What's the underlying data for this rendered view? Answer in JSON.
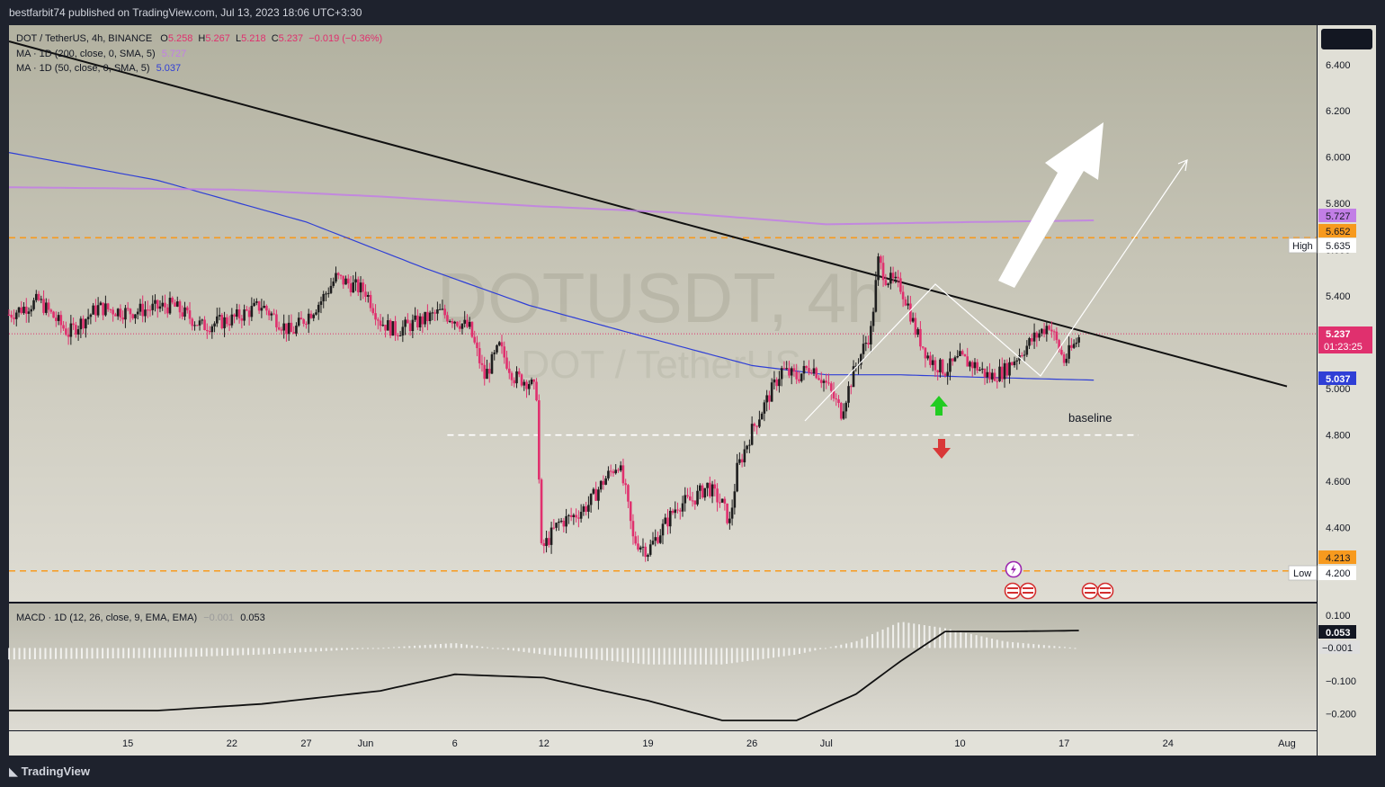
{
  "header": {
    "publisher": "bestfarbit74 published on TradingView.com, Jul 13, 2023 18:06 UTC+3:30"
  },
  "legend": {
    "symbol": "DOT / TetherUS, 4h, BINANCE",
    "o_label": "O",
    "o_value": "5.258",
    "h_label": "H",
    "h_value": "5.267",
    "l_label": "L",
    "l_value": "5.218",
    "c_label": "C",
    "c_value": "5.237",
    "change": "−0.019 (−0.36%)",
    "ma200_label": "MA · 1D (200, close, 0, SMA, 5)",
    "ma200_value": "5.727",
    "ma50_label": "MA · 1D (50, close, 0, SMA, 5)",
    "ma50_value": "5.037"
  },
  "watermark": {
    "ticker": "DOTUSDT, 4h",
    "pair": "DOT / TetherUS"
  },
  "annotations": {
    "baseline": "baseline"
  },
  "macd_legend": {
    "label": "MACD · 1D (12, 26, close, 9, EMA, EMA)",
    "hist_value": "−0.001",
    "macd_value": "0.053"
  },
  "price_labels": {
    "ma200": "5.727",
    "resistance": "5.652",
    "high_tag": "High",
    "high_value": "5.635",
    "last_price": "5.237",
    "countdown": "01:23:25",
    "ma50": "5.037",
    "support": "4.213",
    "low_tag": "Low",
    "low_value": "4.200"
  },
  "macd_labels": {
    "macd": "0.053",
    "hist": "−0.001"
  },
  "footer": {
    "brand": "TradingView"
  },
  "colors": {
    "candle_up": "#1e1e1e",
    "candle_down": "#e0306e",
    "ma50": "#2f3fd6",
    "ma200": "#c27ee6",
    "trendline": "#111111",
    "level": "#f79a1e",
    "baseline": "#ffffff",
    "arrow_up": "#22cc22",
    "arrow_down": "#d93838"
  },
  "chart_data": {
    "type": "candlestick",
    "title": "DOT / TetherUS, 4h, BINANCE",
    "ylim": [
      4.08,
      6.57
    ],
    "y_ticks": [
      "6.400",
      "6.200",
      "6.000",
      "5.800",
      "5.600",
      "5.400",
      "5.200",
      "5.000",
      "4.800",
      "4.600",
      "4.400"
    ],
    "y_tick_values": [
      6.4,
      6.2,
      6.0,
      5.8,
      5.6,
      5.4,
      5.2,
      5.0,
      4.8,
      4.6,
      4.4
    ],
    "x_ticks": [
      "15",
      "22",
      "27",
      "Jun",
      "6",
      "12",
      "19",
      "26",
      "Jul",
      "10",
      "17",
      "24",
      "Aug"
    ],
    "x_tick_days": [
      -47,
      -40,
      -35,
      -31,
      -25,
      -19,
      -12,
      -5,
      0,
      9,
      16,
      23,
      31
    ],
    "x_range_days": [
      -55,
      33
    ],
    "price_path": [
      [
        -55,
        5.32
      ],
      [
        -53,
        5.38
      ],
      [
        -51,
        5.24
      ],
      [
        -49,
        5.35
      ],
      [
        -47,
        5.33
      ],
      [
        -44,
        5.36
      ],
      [
        -42,
        5.27
      ],
      [
        -40,
        5.3
      ],
      [
        -38,
        5.36
      ],
      [
        -36,
        5.24
      ],
      [
        -34,
        5.38
      ],
      [
        -33,
        5.48
      ],
      [
        -31,
        5.42
      ],
      [
        -30,
        5.29
      ],
      [
        -29,
        5.25
      ],
      [
        -27,
        5.3
      ],
      [
        -26,
        5.33
      ],
      [
        -25,
        5.3
      ],
      [
        -24,
        5.26
      ],
      [
        -23,
        5.05
      ],
      [
        -22,
        5.18
      ],
      [
        -21,
        5.05
      ],
      [
        -20,
        5.03
      ],
      [
        -19.5,
        4.98
      ],
      [
        -19.2,
        4.3
      ],
      [
        -18,
        4.42
      ],
      [
        -17,
        4.45
      ],
      [
        -16,
        4.5
      ],
      [
        -15,
        4.6
      ],
      [
        -14,
        4.68
      ],
      [
        -13.5,
        4.55
      ],
      [
        -13,
        4.35
      ],
      [
        -12,
        4.3
      ],
      [
        -11,
        4.4
      ],
      [
        -10,
        4.5
      ],
      [
        -9,
        4.52
      ],
      [
        -8,
        4.58
      ],
      [
        -7,
        4.5
      ],
      [
        -6.5,
        4.42
      ],
      [
        -6,
        4.65
      ],
      [
        -5,
        4.82
      ],
      [
        -4,
        4.95
      ],
      [
        -3,
        5.08
      ],
      [
        -2,
        5.05
      ],
      [
        -1,
        5.1
      ],
      [
        0,
        5.02
      ],
      [
        0.5,
        4.96
      ],
      [
        1,
        4.9
      ],
      [
        2,
        5.1
      ],
      [
        3,
        5.25
      ],
      [
        3.5,
        5.55
      ],
      [
        4,
        5.48
      ],
      [
        5,
        5.44
      ],
      [
        5.5,
        5.36
      ],
      [
        6,
        5.25
      ],
      [
        7,
        5.12
      ],
      [
        8,
        5.08
      ],
      [
        9,
        5.13
      ],
      [
        10,
        5.1
      ],
      [
        11,
        5.05
      ],
      [
        12,
        5.08
      ],
      [
        13,
        5.15
      ],
      [
        14,
        5.22
      ],
      [
        15,
        5.28
      ],
      [
        16,
        5.12
      ],
      [
        17,
        5.22
      ]
    ],
    "series": [
      {
        "name": "MA · 1D (50, close, 0, SMA, 5)",
        "x": [
          -55,
          -45,
          -35,
          -27,
          -20,
          -12,
          -5,
          0,
          5,
          10,
          18
        ],
        "values": [
          6.02,
          5.9,
          5.72,
          5.52,
          5.36,
          5.22,
          5.1,
          5.06,
          5.06,
          5.05,
          5.037
        ]
      },
      {
        "name": "MA · 1D (200, close, 0, SMA, 5)",
        "x": [
          -55,
          -40,
          -30,
          -20,
          -10,
          0,
          10,
          18
        ],
        "values": [
          5.87,
          5.86,
          5.83,
          5.79,
          5.76,
          5.71,
          5.72,
          5.727
        ]
      }
    ],
    "horizontal_levels": [
      5.652,
      4.8,
      4.213
    ],
    "high": 5.635,
    "low": 4.2,
    "last": 5.237,
    "trendline": {
      "x": [
        -55,
        31
      ],
      "y": [
        6.5,
        5.01
      ]
    },
    "macd": {
      "ylim": [
        -0.25,
        0.135
      ],
      "y_ticks": [
        "0.100",
        "−0.100",
        "−0.200"
      ],
      "y_tick_values": [
        0.1,
        -0.1,
        -0.2
      ],
      "macd_line": {
        "x": [
          -55,
          -45,
          -38,
          -30,
          -25,
          -19,
          -12,
          -7,
          -2,
          2,
          5,
          8,
          12,
          17
        ],
        "values": [
          -0.19,
          -0.19,
          -0.17,
          -0.13,
          -0.08,
          -0.09,
          -0.16,
          -0.22,
          -0.22,
          -0.14,
          -0.04,
          0.05,
          0.05,
          0.053
        ]
      },
      "histogram": {
        "x": [
          -55,
          -45,
          -38,
          -30,
          -25,
          -19,
          -12,
          -7,
          -2,
          2,
          5,
          8,
          12,
          17
        ],
        "values": [
          -0.035,
          -0.03,
          -0.02,
          0.0,
          0.015,
          -0.02,
          -0.05,
          -0.05,
          -0.02,
          0.02,
          0.08,
          0.06,
          0.02,
          -0.001
        ]
      }
    }
  }
}
